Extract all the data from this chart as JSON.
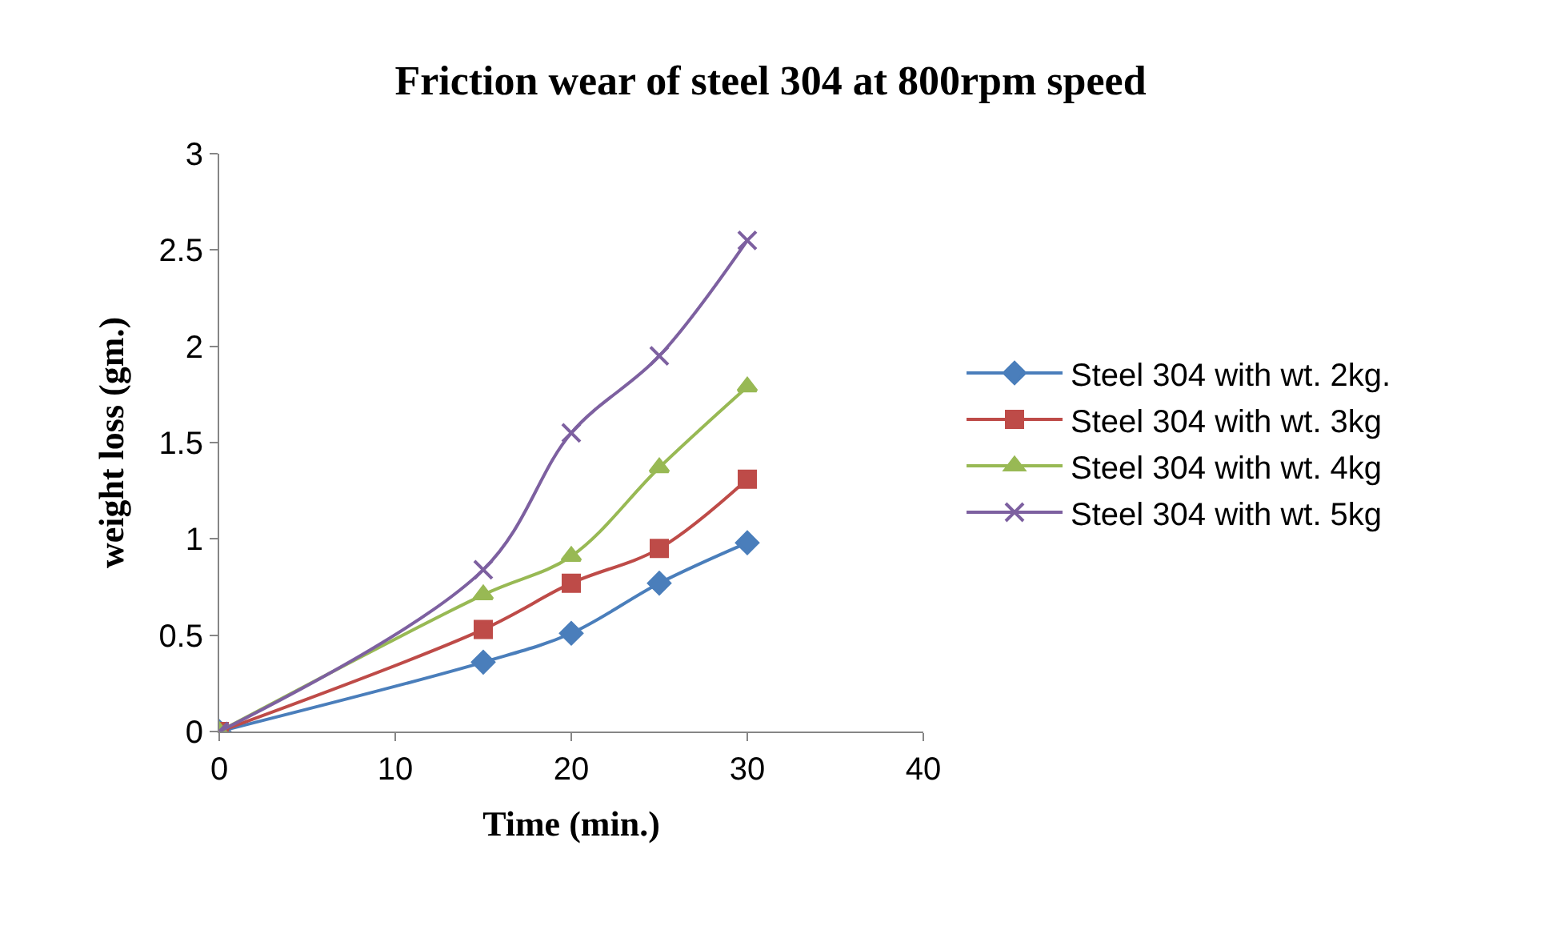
{
  "chart_data": {
    "type": "line",
    "title": "Friction wear of steel 304 at 800rpm speed",
    "xlabel": "Time (min.)",
    "ylabel": "weight loss (gm.)",
    "x": [
      0,
      15,
      20,
      25,
      30
    ],
    "series": [
      {
        "name": "Steel 304 with wt. 2kg.",
        "color": "#4a7ebb",
        "marker": "diamond",
        "values": [
          0,
          0.36,
          0.51,
          0.77,
          0.98
        ]
      },
      {
        "name": "Steel 304 with wt. 3kg",
        "color": "#be4b48",
        "marker": "square",
        "values": [
          0,
          0.53,
          0.77,
          0.95,
          1.31
        ]
      },
      {
        "name": "Steel 304 with wt. 4kg",
        "color": "#98b954",
        "marker": "triangle",
        "values": [
          0,
          0.71,
          0.91,
          1.37,
          1.79
        ]
      },
      {
        "name": "Steel 304 with wt. 5kg",
        "color": "#7d60a0",
        "marker": "cross",
        "values": [
          0,
          0.84,
          1.55,
          1.95,
          2.55
        ]
      }
    ],
    "xlim": [
      0,
      40
    ],
    "xticks": [
      0,
      10,
      20,
      30,
      40
    ],
    "ylim": [
      0,
      3
    ],
    "yticks": [
      0,
      0.5,
      1,
      1.5,
      2,
      2.5,
      3
    ],
    "legend": "right",
    "line_style": "solid"
  }
}
